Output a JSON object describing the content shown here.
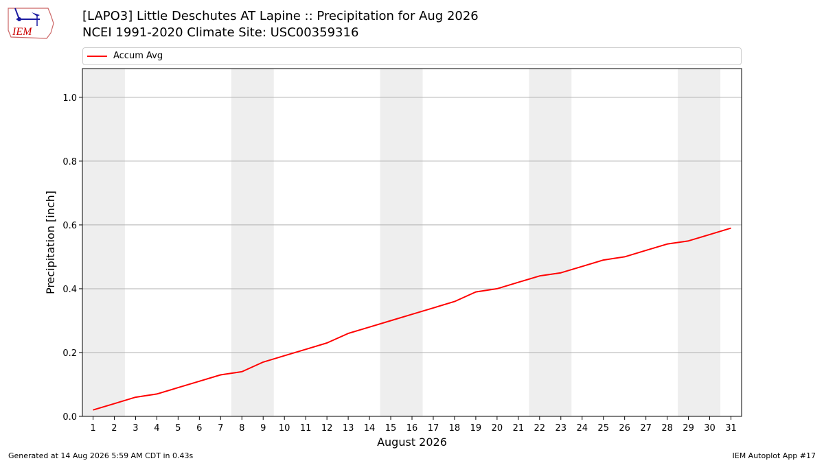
{
  "header": {
    "title_line1": "[LAPO3] Little Deschutes  AT Lapine :: Precipitation for Aug 2026",
    "title_line2": "NCEI 1991-2020 Climate Site: USC00359316"
  },
  "logo": {
    "text": "IEM"
  },
  "footer": {
    "generated": "Generated at 14 Aug 2026 5:59 AM CDT in 0.43s",
    "app": "IEM Autoplot App #17"
  },
  "colors": {
    "series": "#ff0000",
    "weekend_band": "#eeeeee",
    "grid": "#b0b0b0"
  },
  "chart_data": {
    "type": "line",
    "title": "[LAPO3] Little Deschutes  AT Lapine :: Precipitation for Aug 2026",
    "subtitle": "NCEI 1991-2020 Climate Site: USC00359316",
    "xlabel": "August 2026",
    "ylabel": "Precipitation [inch]",
    "xlim": [
      0.5,
      31.5
    ],
    "ylim": [
      0,
      1.09
    ],
    "yticks": [
      0.0,
      0.2,
      0.4,
      0.6,
      0.8,
      1.0
    ],
    "ytick_labels": [
      "0.0",
      "0.2",
      "0.4",
      "0.6",
      "0.8",
      "1.0"
    ],
    "xticks": [
      1,
      2,
      3,
      4,
      5,
      6,
      7,
      8,
      9,
      10,
      11,
      12,
      13,
      14,
      15,
      16,
      17,
      18,
      19,
      20,
      21,
      22,
      23,
      24,
      25,
      26,
      27,
      28,
      29,
      30,
      31
    ],
    "grid": "horizontal",
    "legend_position": "top",
    "weekend_bands": [
      [
        0.5,
        2.5
      ],
      [
        7.5,
        9.5
      ],
      [
        14.5,
        16.5
      ],
      [
        21.5,
        23.5
      ],
      [
        28.5,
        30.5
      ]
    ],
    "series": [
      {
        "name": "Accum Avg",
        "x": [
          1,
          2,
          3,
          4,
          5,
          6,
          7,
          8,
          9,
          10,
          11,
          12,
          13,
          14,
          15,
          16,
          17,
          18,
          19,
          20,
          21,
          22,
          23,
          24,
          25,
          26,
          27,
          28,
          29,
          30,
          31
        ],
        "values": [
          0.02,
          0.04,
          0.06,
          0.07,
          0.09,
          0.11,
          0.13,
          0.14,
          0.17,
          0.19,
          0.21,
          0.23,
          0.26,
          0.28,
          0.3,
          0.32,
          0.34,
          0.36,
          0.39,
          0.4,
          0.42,
          0.44,
          0.45,
          0.47,
          0.49,
          0.5,
          0.52,
          0.54,
          0.55,
          0.57,
          0.59
        ]
      }
    ]
  }
}
